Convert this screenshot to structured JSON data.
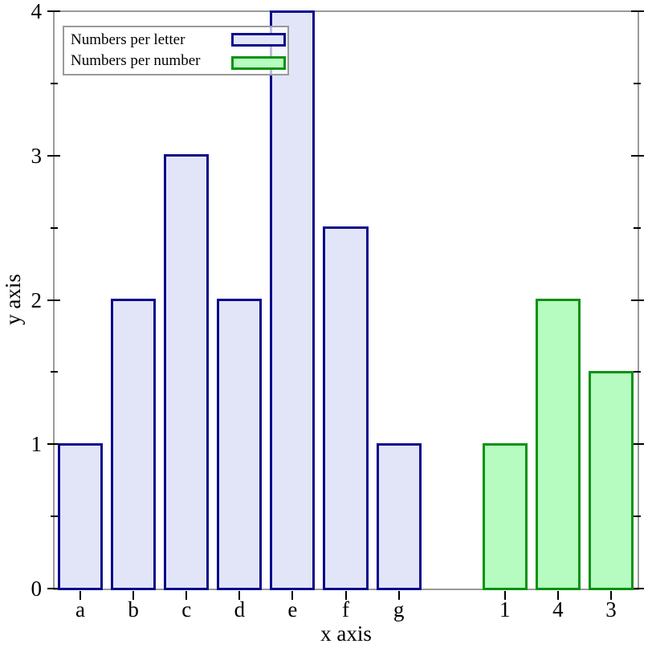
{
  "chart_data": {
    "type": "bar",
    "title": "",
    "xlabel": "x axis",
    "ylabel": "y axis",
    "ylim": [
      0,
      4
    ],
    "y_major_ticks": [
      0,
      1,
      2,
      3,
      4
    ],
    "y_minor_ticks": [
      0.5,
      1.5,
      2.5,
      3.5
    ],
    "slot_count": 11,
    "grid": "off",
    "legend_position": "top-left",
    "series": [
      {
        "name": "Numbers per letter",
        "fill": "#e2e5f8",
        "stroke": "#0b0b8b",
        "categories": [
          "a",
          "b",
          "c",
          "d",
          "e",
          "f",
          "g"
        ],
        "slots": [
          0,
          1,
          2,
          3,
          4,
          5,
          6
        ],
        "values": [
          1,
          2,
          3,
          2,
          4,
          2.5,
          1
        ]
      },
      {
        "name": "Numbers per number",
        "fill": "#b6fcc0",
        "stroke": "#0b9210",
        "categories": [
          "1",
          "4",
          "3"
        ],
        "slots": [
          8,
          9,
          10
        ],
        "values": [
          1,
          2,
          1.5
        ]
      }
    ],
    "colors": {
      "frame": "#9a9a9a",
      "tick": "#000000",
      "background": "#ffffff"
    }
  }
}
